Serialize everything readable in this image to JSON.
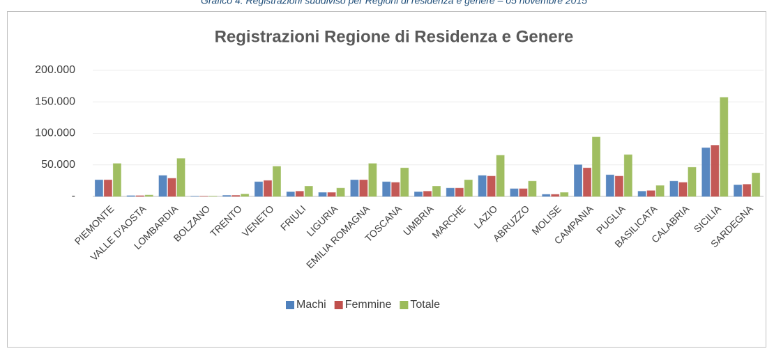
{
  "caption": "Grafico 4. Registrazioni suddiviso per Regioni di residenza e genere – 05 novembre 2015",
  "chart_data": {
    "type": "bar",
    "title": "Registrazioni Regione di Residenza e Genere",
    "categories": [
      "PIEMONTE",
      "VALLE D'AOSTA",
      "LOMBARDIA",
      "BOLZANO",
      "TRENTO",
      "VENETO",
      "FRIULI",
      "LIGURIA",
      "EMILIA ROMAGNA",
      "TOSCANA",
      "UMBRIA",
      "MARCHE",
      "LAZIO",
      "ABRUZZO",
      "MOLISE",
      "CAMPANIA",
      "PUGLIA",
      "BASILICATA",
      "CALABRIA",
      "SICILIA",
      "SARDEGNA"
    ],
    "series": [
      {
        "name": "Machi",
        "color": "#4f81bd",
        "values": [
          26000,
          1000,
          33000,
          100,
          1500,
          23000,
          7000,
          6000,
          26000,
          23000,
          7000,
          13000,
          33000,
          12000,
          3000,
          50000,
          34000,
          8000,
          24000,
          77000,
          18000
        ]
      },
      {
        "name": "Femmine",
        "color": "#c0504d",
        "values": [
          26000,
          1000,
          28500,
          100,
          1500,
          25000,
          8000,
          6000,
          26000,
          22000,
          8000,
          13000,
          32000,
          12000,
          3000,
          45000,
          32000,
          9000,
          22000,
          81000,
          19000
        ]
      },
      {
        "name": "Totale",
        "color": "#9bbb59",
        "values": [
          52000,
          2000,
          60000,
          200,
          3500,
          47500,
          16000,
          13000,
          52000,
          45000,
          16000,
          26000,
          65000,
          24000,
          6000,
          94000,
          66000,
          17000,
          46000,
          157000,
          37000
        ]
      }
    ],
    "ylim": [
      0,
      200000
    ],
    "yticks": [
      {
        "value": 0,
        "label": "-"
      },
      {
        "value": 50000,
        "label": "50.000"
      },
      {
        "value": 100000,
        "label": "100.000"
      },
      {
        "value": 150000,
        "label": "150.000"
      },
      {
        "value": 200000,
        "label": "200.000"
      }
    ],
    "legend": "bottom"
  }
}
